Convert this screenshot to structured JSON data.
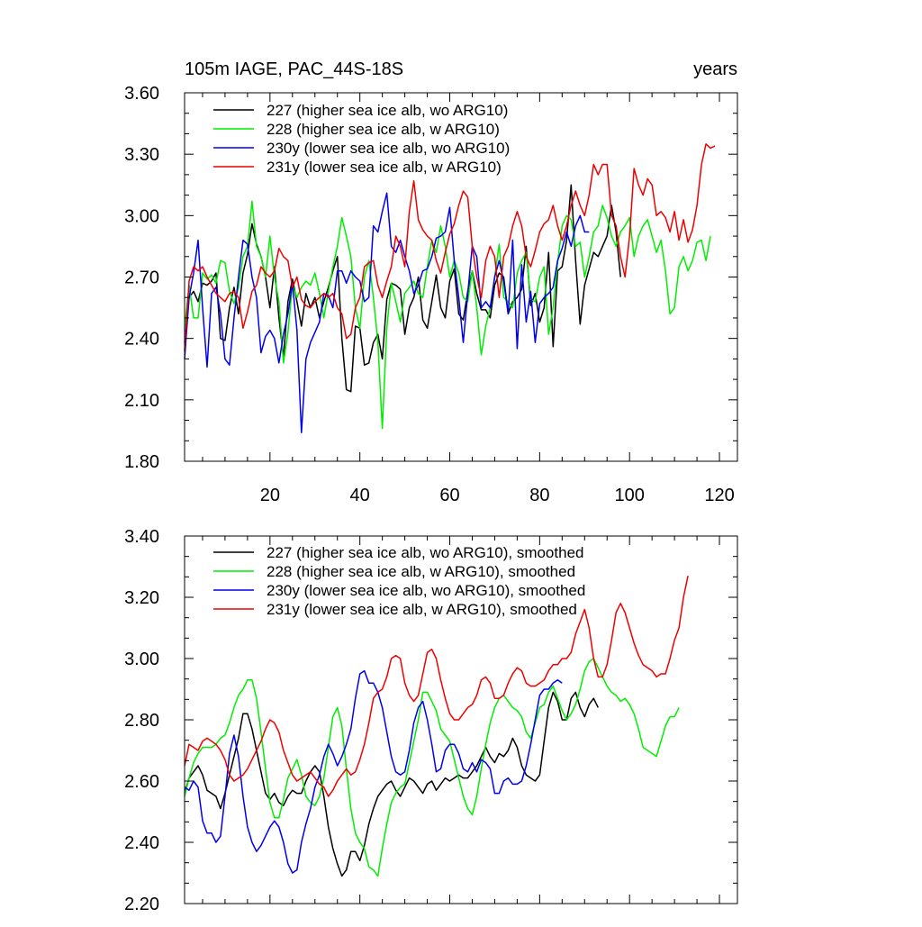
{
  "chart_data": [
    {
      "type": "line",
      "title": "105m IAGE, PAC_44S-18S",
      "title_right": "years",
      "xlim": [
        1,
        124
      ],
      "ylim": [
        1.8,
        3.6
      ],
      "x_ticks": [
        20,
        40,
        60,
        80,
        100,
        120
      ],
      "y_ticks": [
        1.8,
        2.1,
        2.4,
        2.7,
        3.0,
        3.3,
        3.6
      ],
      "x_tick_labels": [
        "20",
        "40",
        "60",
        "80",
        "100",
        "120"
      ],
      "y_tick_labels": [
        "1.80",
        "2.10",
        "2.40",
        "2.70",
        "3.00",
        "3.30",
        "3.60"
      ],
      "legend_position": "top-left",
      "series": [
        {
          "name": "227 (higher sea ice alb, wo ARG10)",
          "color": "#000000",
          "x_start": 1,
          "values": [
            2.38,
            2.6,
            2.63,
            2.58,
            2.67,
            2.66,
            2.68,
            2.72,
            2.4,
            2.39,
            2.55,
            2.65,
            2.52,
            2.72,
            2.81,
            2.96,
            2.86,
            2.8,
            2.7,
            2.55,
            2.75,
            2.5,
            2.31,
            2.58,
            2.69,
            2.58,
            2.46,
            2.62,
            2.55,
            2.6,
            2.5,
            2.58,
            2.65,
            2.73,
            2.8,
            2.4,
            2.15,
            2.14,
            2.46,
            2.45,
            2.27,
            2.28,
            2.38,
            2.42,
            2.3,
            2.59,
            2.67,
            2.66,
            2.64,
            2.42,
            2.55,
            2.6,
            2.7,
            2.49,
            2.45,
            2.58,
            2.71,
            2.55,
            2.5,
            2.68,
            2.74,
            2.52,
            2.49,
            2.63,
            2.73,
            2.62,
            2.54,
            2.54,
            2.5,
            2.66,
            2.72,
            2.7,
            2.52,
            2.58,
            2.6,
            2.64,
            2.85,
            2.56,
            2.62,
            2.48,
            2.55,
            2.82,
            2.36,
            2.73,
            2.75,
            2.88,
            3.15,
            2.78,
            2.47,
            2.66,
            2.74,
            2.82,
            2.8,
            2.85,
            2.9,
            3.05,
            2.92,
            2.7
          ]
        },
        {
          "name": "228 (higher sea ice alb, w ARG10)",
          "color": "#00ee00",
          "x_start": 1,
          "values": [
            2.45,
            2.66,
            2.5,
            2.5,
            2.72,
            2.69,
            2.71,
            2.67,
            2.78,
            2.77,
            2.63,
            2.57,
            2.65,
            2.8,
            2.85,
            3.07,
            2.85,
            2.8,
            2.7,
            2.9,
            2.7,
            2.58,
            2.28,
            2.43,
            2.66,
            2.6,
            2.65,
            2.68,
            2.66,
            2.72,
            2.62,
            2.5,
            2.63,
            2.75,
            2.85,
            2.99,
            2.9,
            2.8,
            2.55,
            2.45,
            2.7,
            2.78,
            2.6,
            2.38,
            1.96,
            2.45,
            2.67,
            2.58,
            2.48,
            2.62,
            2.65,
            2.68,
            2.62,
            2.6,
            2.75,
            2.88,
            2.82,
            2.95,
            2.85,
            2.7,
            2.78,
            2.72,
            2.6,
            2.58,
            2.73,
            2.55,
            2.32,
            2.46,
            2.55,
            2.7,
            2.86,
            2.6,
            2.58,
            2.55,
            2.72,
            2.78,
            2.82,
            2.59,
            2.58,
            2.7,
            2.75,
            2.42,
            2.55,
            2.77,
            2.95,
            3.0,
            2.98,
            2.85,
            2.87,
            2.7,
            2.8,
            2.92,
            2.95,
            3.05,
            2.99,
            2.9,
            2.85,
            2.92,
            2.95,
            2.99,
            2.8,
            2.9,
            2.95,
            2.98,
            2.9,
            2.82,
            2.88,
            2.73,
            2.52,
            2.55,
            2.75,
            2.8,
            2.73,
            2.78,
            2.87,
            2.88,
            2.78,
            2.9
          ]
        },
        {
          "name": "230y (lower sea ice alb, wo ARG10)",
          "color": "#0000ee",
          "x_start": 1,
          "values": [
            2.3,
            2.6,
            2.72,
            2.88,
            2.55,
            2.26,
            2.62,
            2.65,
            2.52,
            2.3,
            2.27,
            2.5,
            2.7,
            2.88,
            2.86,
            2.7,
            2.6,
            2.33,
            2.41,
            2.44,
            2.4,
            2.28,
            2.42,
            2.52,
            2.67,
            2.44,
            1.94,
            2.3,
            2.38,
            2.43,
            2.48,
            2.62,
            2.61,
            2.55,
            2.73,
            2.73,
            2.67,
            2.73,
            2.7,
            2.68,
            2.58,
            2.6,
            2.95,
            2.92,
            3.02,
            3.11,
            2.85,
            2.82,
            2.88,
            2.8,
            2.73,
            2.62,
            2.66,
            2.73,
            2.74,
            2.8,
            2.89,
            2.9,
            2.92,
            3.04,
            2.78,
            2.6,
            2.38,
            2.62,
            2.85,
            2.8,
            2.55,
            2.58,
            2.55,
            2.7,
            2.78,
            2.68,
            2.52,
            2.88,
            2.35,
            2.76,
            2.48,
            2.63,
            2.38,
            2.57,
            2.6,
            2.62,
            2.65,
            2.78,
            2.84,
            2.92,
            2.85,
            2.95,
            3.0,
            2.92,
            2.92
          ]
        },
        {
          "name": "231y (lower sea ice alb, w ARG10)",
          "color": "#ee0000",
          "x_start": 1,
          "values": [
            2.34,
            2.68,
            2.75,
            2.73,
            2.75,
            2.7,
            2.66,
            2.62,
            2.6,
            2.58,
            2.62,
            2.63,
            2.6,
            2.45,
            2.53,
            2.63,
            2.66,
            2.75,
            2.72,
            2.7,
            2.73,
            2.84,
            2.8,
            2.78,
            2.65,
            2.7,
            2.59,
            2.56,
            2.55,
            2.58,
            2.6,
            2.62,
            2.6,
            2.62,
            2.55,
            2.52,
            2.4,
            2.42,
            2.55,
            2.6,
            2.75,
            2.77,
            2.78,
            2.66,
            2.6,
            2.68,
            2.75,
            2.9,
            2.85,
            2.75,
            3.02,
            3.17,
            2.98,
            2.93,
            2.9,
            2.88,
            2.78,
            2.72,
            2.82,
            2.91,
            2.96,
            3.05,
            3.12,
            3.09,
            2.85,
            2.7,
            2.6,
            2.78,
            2.85,
            2.8,
            2.6,
            2.8,
            2.85,
            2.95,
            3.02,
            2.95,
            2.8,
            2.75,
            2.83,
            2.92,
            2.96,
            2.98,
            3.05,
            2.95,
            2.88,
            2.95,
            3.05,
            3.12,
            3.05,
            3.0,
            3.1,
            3.25,
            3.2,
            3.25,
            3.25,
            3.0,
            2.95,
            2.8,
            2.7,
            2.9,
            3.23,
            3.15,
            3.1,
            3.18,
            3.15,
            3.0,
            3.02,
            2.99,
            2.92,
            3.02,
            2.88,
            2.98,
            2.87,
            2.93,
            3.05,
            3.25,
            3.35,
            3.33,
            3.34
          ]
        }
      ]
    },
    {
      "type": "line",
      "title": "",
      "xlim": [
        1,
        124
      ],
      "ylim": [
        2.2,
        3.4
      ],
      "x_ticks": [
        20,
        40,
        60,
        80,
        100,
        120
      ],
      "y_ticks": [
        2.2,
        2.4,
        2.6,
        2.8,
        3.0,
        3.2,
        3.4
      ],
      "x_tick_labels": [],
      "y_tick_labels": [
        "2.20",
        "2.40",
        "2.60",
        "2.80",
        "3.00",
        "3.20",
        "3.40"
      ],
      "legend_position": "top-left",
      "series": [
        {
          "name": "227 (higher sea ice alb, wo ARG10), smoothed",
          "color": "#000000",
          "x_start": 1,
          "values": [
            2.56,
            2.61,
            2.63,
            2.65,
            2.62,
            2.57,
            2.56,
            2.55,
            2.51,
            2.56,
            2.62,
            2.68,
            2.74,
            2.82,
            2.82,
            2.77,
            2.7,
            2.63,
            2.56,
            2.54,
            2.56,
            2.53,
            2.52,
            2.55,
            2.57,
            2.56,
            2.56,
            2.6,
            2.63,
            2.65,
            2.63,
            2.55,
            2.45,
            2.38,
            2.33,
            2.29,
            2.31,
            2.37,
            2.37,
            2.34,
            2.39,
            2.46,
            2.51,
            2.55,
            2.57,
            2.59,
            2.6,
            2.57,
            2.55,
            2.58,
            2.61,
            2.6,
            2.58,
            2.56,
            2.59,
            2.6,
            2.57,
            2.59,
            2.61,
            2.6,
            2.61,
            2.62,
            2.61,
            2.61,
            2.63,
            2.65,
            2.68,
            2.71,
            2.68,
            2.66,
            2.69,
            2.68,
            2.7,
            2.74,
            2.71,
            2.65,
            2.62,
            2.61,
            2.6,
            2.62,
            2.73,
            2.84,
            2.89,
            2.86,
            2.8,
            2.8,
            2.87,
            2.89,
            2.84,
            2.81,
            2.85,
            2.87,
            2.84
          ]
        },
        {
          "name": "228 (higher sea ice alb, w ARG10), smoothed",
          "color": "#00ee00",
          "x_start": 1,
          "values": [
            2.55,
            2.61,
            2.66,
            2.69,
            2.71,
            2.71,
            2.71,
            2.72,
            2.74,
            2.75,
            2.79,
            2.84,
            2.88,
            2.9,
            2.93,
            2.93,
            2.87,
            2.76,
            2.64,
            2.53,
            2.48,
            2.48,
            2.54,
            2.61,
            2.64,
            2.67,
            2.62,
            2.55,
            2.53,
            2.52,
            2.55,
            2.61,
            2.71,
            2.81,
            2.84,
            2.78,
            2.64,
            2.51,
            2.43,
            2.4,
            2.38,
            2.32,
            2.31,
            2.29,
            2.38,
            2.46,
            2.53,
            2.56,
            2.58,
            2.59,
            2.66,
            2.73,
            2.8,
            2.89,
            2.89,
            2.86,
            2.83,
            2.77,
            2.75,
            2.73,
            2.67,
            2.61,
            2.55,
            2.51,
            2.49,
            2.55,
            2.64,
            2.72,
            2.79,
            2.84,
            2.87,
            2.88,
            2.86,
            2.84,
            2.83,
            2.81,
            2.76,
            2.74,
            2.79,
            2.84,
            2.85,
            2.89,
            2.91,
            2.87,
            2.83,
            2.8,
            2.82,
            2.85,
            2.9,
            2.96,
            2.99,
            3.0,
            2.97,
            2.94,
            2.91,
            2.89,
            2.88,
            2.86,
            2.87,
            2.85,
            2.82,
            2.77,
            2.71,
            2.7,
            2.69,
            2.68,
            2.73,
            2.78,
            2.81,
            2.81,
            2.84
          ]
        },
        {
          "name": "230y (lower sea ice alb, wo ARG10), smoothed",
          "color": "#0000ee",
          "x_start": 1,
          "values": [
            2.58,
            2.57,
            2.6,
            2.58,
            2.47,
            2.43,
            2.43,
            2.4,
            2.42,
            2.55,
            2.69,
            2.75,
            2.68,
            2.55,
            2.45,
            2.4,
            2.37,
            2.39,
            2.42,
            2.45,
            2.47,
            2.45,
            2.4,
            2.33,
            2.3,
            2.31,
            2.4,
            2.46,
            2.51,
            2.58,
            2.62,
            2.68,
            2.72,
            2.69,
            2.65,
            2.68,
            2.72,
            2.77,
            2.87,
            2.95,
            2.96,
            2.92,
            2.92,
            2.89,
            2.84,
            2.76,
            2.68,
            2.63,
            2.62,
            2.63,
            2.7,
            2.79,
            2.84,
            2.86,
            2.8,
            2.72,
            2.63,
            2.64,
            2.7,
            2.72,
            2.72,
            2.69,
            2.64,
            2.63,
            2.66,
            2.63,
            2.67,
            2.66,
            2.64,
            2.56,
            2.56,
            2.6,
            2.61,
            2.59,
            2.59,
            2.6,
            2.65,
            2.72,
            2.8,
            2.88,
            2.9,
            2.9,
            2.92,
            2.93,
            2.92
          ]
        },
        {
          "name": "231y (lower sea ice alb, w ARG10), smoothed",
          "color": "#ee0000",
          "x_start": 1,
          "values": [
            2.65,
            2.72,
            2.71,
            2.7,
            2.73,
            2.74,
            2.73,
            2.72,
            2.7,
            2.67,
            2.62,
            2.6,
            2.61,
            2.62,
            2.64,
            2.67,
            2.7,
            2.73,
            2.77,
            2.8,
            2.79,
            2.76,
            2.7,
            2.66,
            2.62,
            2.6,
            2.61,
            2.62,
            2.63,
            2.61,
            2.59,
            2.58,
            2.55,
            2.57,
            2.6,
            2.62,
            2.64,
            2.62,
            2.63,
            2.67,
            2.72,
            2.79,
            2.87,
            2.89,
            2.9,
            2.94,
            3.0,
            3.01,
            3.0,
            2.92,
            2.88,
            2.86,
            2.88,
            2.95,
            3.02,
            3.03,
            3.0,
            2.93,
            2.87,
            2.82,
            2.8,
            2.8,
            2.82,
            2.84,
            2.85,
            2.88,
            2.93,
            2.94,
            2.92,
            2.87,
            2.87,
            2.88,
            2.92,
            2.95,
            2.97,
            2.96,
            2.92,
            2.91,
            2.91,
            2.92,
            2.93,
            2.96,
            2.98,
            2.98,
            3.0,
            3.0,
            3.02,
            3.08,
            3.12,
            3.16,
            3.1,
            3.0,
            2.94,
            2.94,
            2.98,
            3.06,
            3.15,
            3.18,
            3.15,
            3.1,
            3.05,
            3.01,
            2.98,
            2.97,
            2.96,
            2.94,
            2.95,
            2.95,
            3.0,
            3.06,
            3.1,
            3.2,
            3.27
          ]
        }
      ]
    }
  ]
}
